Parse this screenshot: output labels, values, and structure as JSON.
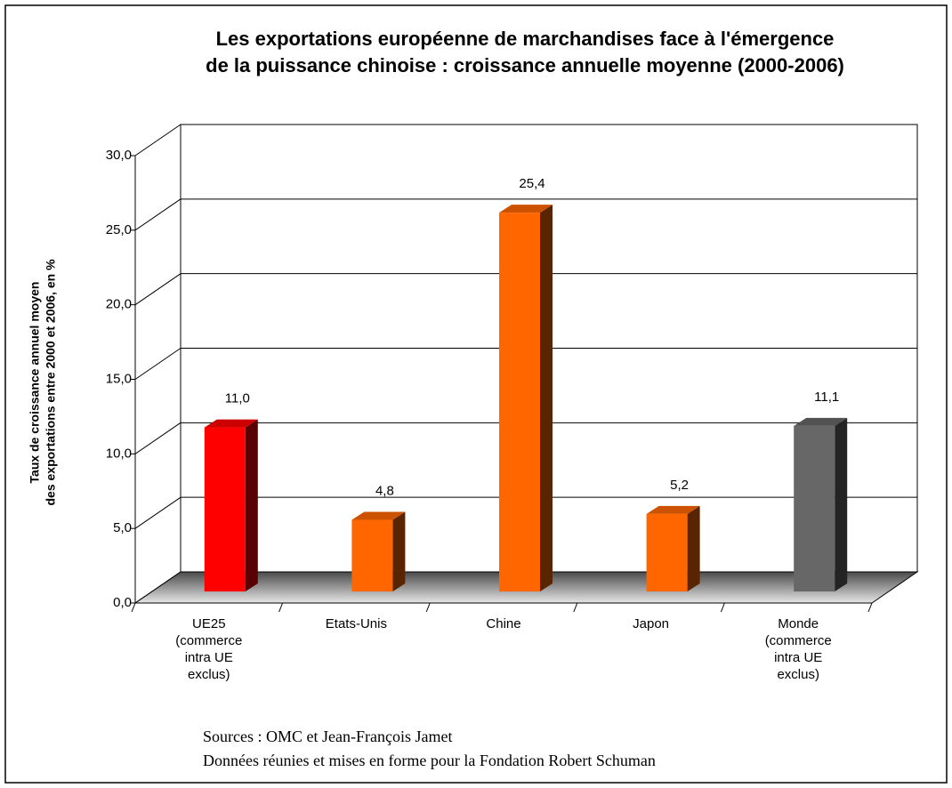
{
  "chart_data": {
    "type": "bar",
    "title": [
      "Les exportations européenne de marchandises face à l'émergence",
      "de la puissance chinoise : croissance annuelle moyenne (2000-2006)"
    ],
    "y_label": [
      "Taux de croissance annuel moyen",
      "des exportations entre 2000 et 2006, en %"
    ],
    "categories": [
      "UE25\n(commerce\nintra UE\nexclus)",
      "Etats-Unis",
      "Chine",
      "Japon",
      "Monde\n(commerce\nintra UE\nexclus)"
    ],
    "values": [
      11.0,
      4.8,
      25.4,
      5.2,
      11.1
    ],
    "value_labels": [
      "11,0",
      "4,8",
      "25,4",
      "5,2",
      "11,1"
    ],
    "colors": [
      "#ff0000",
      "#ff6600",
      "#ff6600",
      "#ff6600",
      "#676767"
    ],
    "ylim": [
      0,
      30
    ],
    "yticks": [
      {
        "value": 0,
        "label": "0,0"
      },
      {
        "value": 5,
        "label": "5,0"
      },
      {
        "value": 10,
        "label": "10,0"
      },
      {
        "value": 15,
        "label": "15,0"
      },
      {
        "value": 20,
        "label": "20,0"
      },
      {
        "value": 25,
        "label": "25,0"
      },
      {
        "value": 30,
        "label": "30,0"
      }
    ],
    "grid": true,
    "sources": [
      "Sources : OMC et Jean-François Jamet",
      "Données réunies et mises en forme pour la Fondation Robert Schuman"
    ]
  }
}
